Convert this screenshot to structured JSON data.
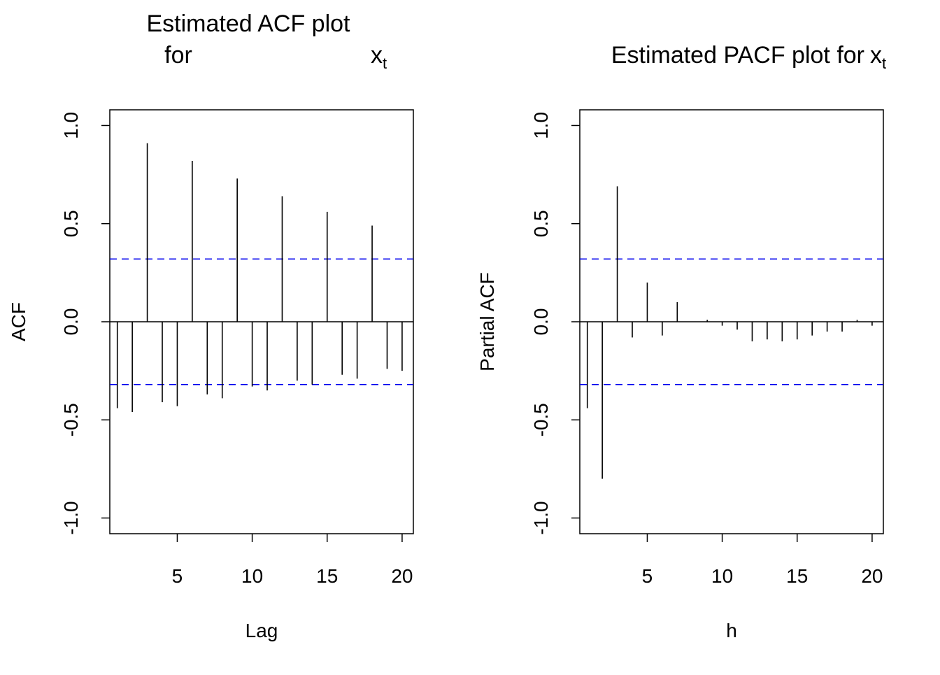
{
  "chart_data": [
    {
      "type": "bar",
      "title_line1": "Estimated ACF plot",
      "title_line2_left": "for",
      "title_symbol": "x",
      "title_subscript": "t",
      "xlabel": "Lag",
      "ylabel": "ACF",
      "xlim": [
        0.5,
        20.75
      ],
      "ylim": [
        -1.08,
        1.08
      ],
      "x_ticks": [
        5,
        10,
        15,
        20
      ],
      "y_ticks": [
        -1.0,
        -0.5,
        0.0,
        0.5,
        1.0
      ],
      "y_tick_labels": [
        "-1.0",
        "-0.5",
        "0.0",
        "0.5",
        "1.0"
      ],
      "confidence_band": 0.32,
      "band_color": "#0000ee",
      "lags": [
        1,
        2,
        3,
        4,
        5,
        6,
        7,
        8,
        9,
        10,
        11,
        12,
        13,
        14,
        15,
        16,
        17,
        18,
        19,
        20
      ],
      "values": [
        -0.44,
        -0.46,
        0.91,
        -0.41,
        -0.43,
        0.82,
        -0.37,
        -0.39,
        0.73,
        -0.33,
        -0.35,
        0.64,
        -0.3,
        -0.32,
        0.56,
        -0.27,
        -0.29,
        0.49,
        -0.24,
        -0.25
      ]
    },
    {
      "type": "bar",
      "title": "Estimated PACF plot for",
      "title_symbol": "x",
      "title_subscript": "t",
      "xlabel": "h",
      "ylabel": "Partial ACF",
      "xlim": [
        0.5,
        20.75
      ],
      "ylim": [
        -1.08,
        1.08
      ],
      "x_ticks": [
        5,
        10,
        15,
        20
      ],
      "y_ticks": [
        -1.0,
        -0.5,
        0.0,
        0.5,
        1.0
      ],
      "y_tick_labels": [
        "-1.0",
        "-0.5",
        "0.0",
        "0.5",
        "1.0"
      ],
      "confidence_band": 0.32,
      "band_color": "#0000ee",
      "lags": [
        1,
        2,
        3,
        4,
        5,
        6,
        7,
        8,
        9,
        10,
        11,
        12,
        13,
        14,
        15,
        16,
        17,
        18,
        19,
        20
      ],
      "values": [
        -0.44,
        -0.8,
        0.69,
        -0.08,
        0.2,
        -0.07,
        0.1,
        0.0,
        0.01,
        -0.02,
        -0.04,
        -0.1,
        -0.09,
        -0.1,
        -0.09,
        -0.07,
        -0.05,
        -0.05,
        0.01,
        -0.02
      ]
    }
  ]
}
